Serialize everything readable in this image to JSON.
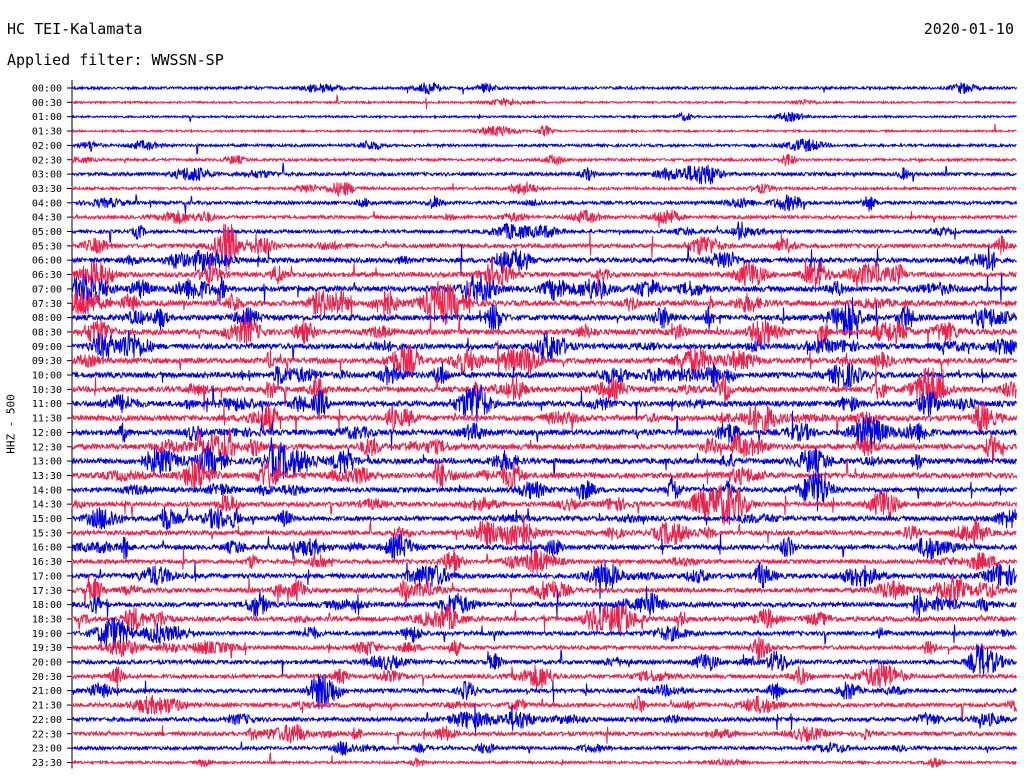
{
  "header": {
    "station": "HC TEI-Kalamata",
    "date": "2020-01-10",
    "filter_label": "Applied filter:",
    "filter_value": "WWSSN-SP"
  },
  "chart_data": {
    "type": "line",
    "title": "HC TEI-Kalamata",
    "subtitle": "Applied filter: WWSSN-SP",
    "ylabel": "HHZ - 500",
    "xlabel": "",
    "grid": false,
    "legend": "none",
    "colors": [
      "#0000e6",
      "#f0204a"
    ],
    "rows": [
      "00:00",
      "00:30",
      "01:00",
      "01:30",
      "02:00",
      "02:30",
      "03:00",
      "03:30",
      "04:00",
      "04:30",
      "05:00",
      "05:30",
      "06:00",
      "06:30",
      "07:00",
      "07:30",
      "08:00",
      "08:30",
      "09:00",
      "09:30",
      "10:00",
      "10:30",
      "11:00",
      "11:30",
      "12:00",
      "12:30",
      "13:00",
      "13:30",
      "14:00",
      "14:30",
      "15:00",
      "15:30",
      "16:00",
      "16:30",
      "17:00",
      "17:30",
      "18:00",
      "18:30",
      "19:00",
      "19:30",
      "20:00",
      "20:30",
      "21:00",
      "21:30",
      "22:00",
      "22:30",
      "23:00",
      "23:30"
    ],
    "activity": [
      2,
      1,
      1,
      1,
      2,
      2,
      3,
      2,
      3,
      3,
      3,
      4,
      5,
      5,
      6,
      6,
      6,
      6,
      6,
      6,
      6,
      6,
      6,
      6,
      6,
      6,
      6,
      6,
      5,
      5,
      5,
      5,
      5,
      4,
      5,
      5,
      5,
      5,
      4,
      4,
      4,
      4,
      4,
      4,
      4,
      4,
      3,
      2
    ]
  }
}
